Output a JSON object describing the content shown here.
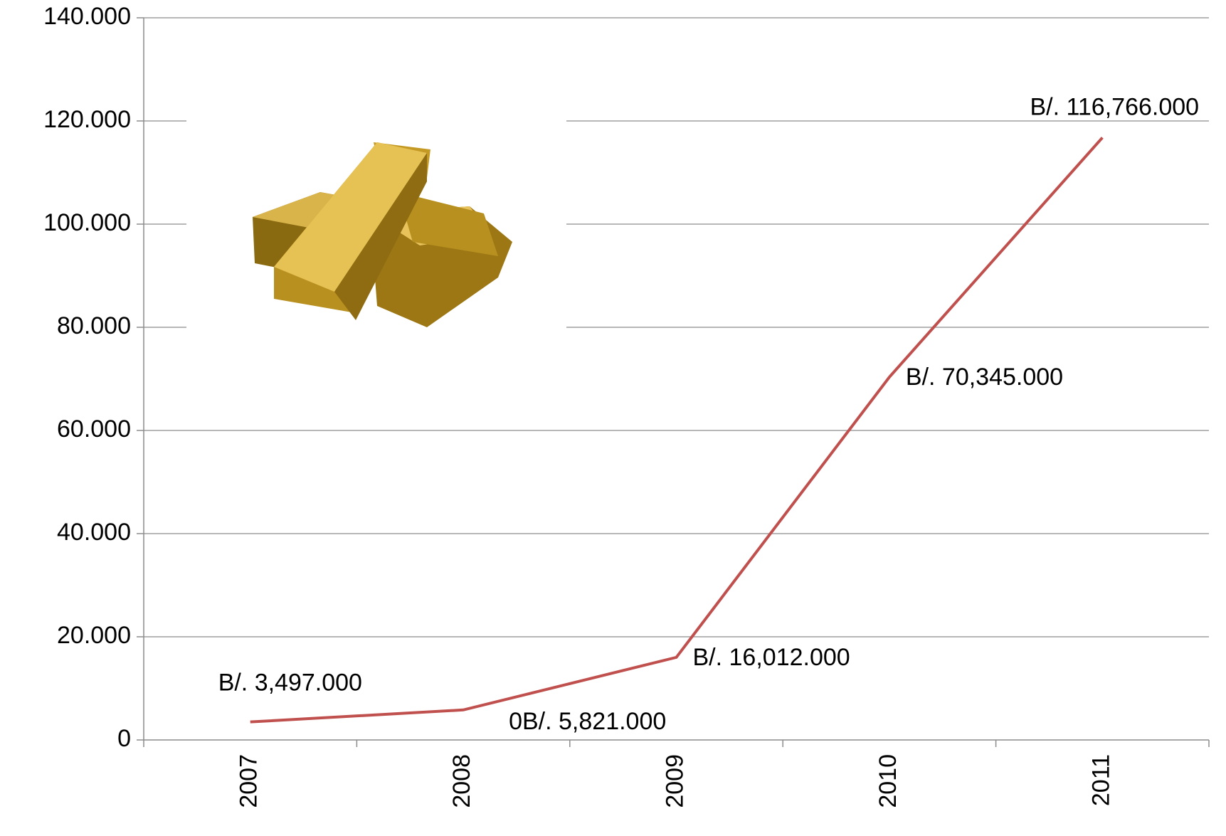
{
  "chart_data": {
    "type": "line",
    "categories": [
      "2007",
      "2008",
      "2009",
      "2010",
      "2011"
    ],
    "series": [
      {
        "color": "#c0504d",
        "values": [
          3497,
          5821,
          16012,
          70345,
          116766
        ],
        "value_labels": [
          "B/. 3,497.000",
          "0B/. 5,821.000",
          "B/. 16,012.000",
          "B/. 70,345.000",
          "B/. 116,766.000"
        ]
      }
    ],
    "ylim": [
      0,
      140000
    ],
    "yticks": [
      0,
      {
        "value": 20000,
        "label": "20.000"
      },
      {
        "value": 40000,
        "label": "40.000"
      },
      {
        "value": 60000,
        "label": "60.000"
      },
      {
        "value": 80000,
        "label": "80.000"
      },
      {
        "value": 100000,
        "label": "100.000"
      },
      {
        "value": 120000,
        "label": "120.000"
      },
      {
        "value": 140000,
        "label": "140.000"
      }
    ],
    "grid": true
  }
}
